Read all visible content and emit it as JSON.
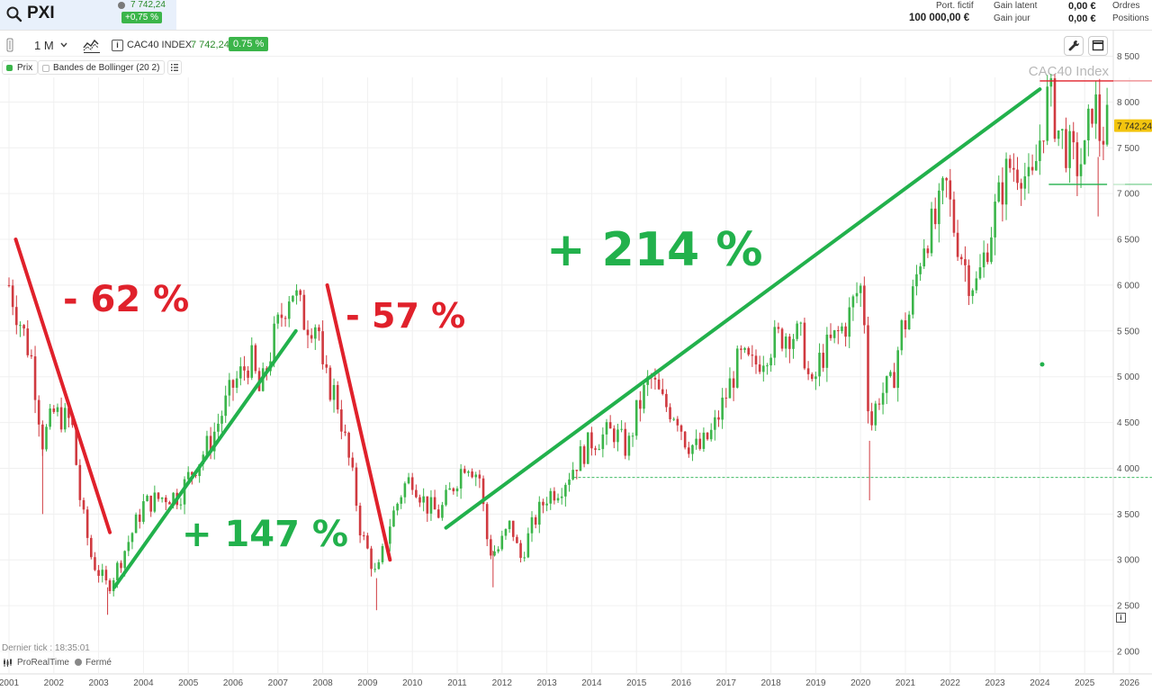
{
  "header": {
    "symbol": "PXI",
    "price": "7 742,24",
    "change": "+0,75 %"
  },
  "account": {
    "portfolio_label": "Port. fictif",
    "portfolio_value": "100 000,00 €",
    "gain_latent_label": "Gain latent",
    "gain_latent_value": "0,00 €",
    "gain_jour_label": "Gain jour",
    "gain_jour_value": "0,00 €",
    "ordres_label": "Ordres",
    "positions_label": "Positions"
  },
  "toolbar": {
    "timeframe": "1 M",
    "instrument_name": "CAC40 INDEX",
    "instrument_price": "7 742,24",
    "instrument_change": "0.75 %"
  },
  "legend": {
    "price_label": "Prix",
    "bollinger_label": "Bandes de Bollinger (20 2)"
  },
  "footer": {
    "last_tick": "Dernier tick : 18:35:01",
    "brand": "ProRealTime",
    "market_status": "Fermé"
  },
  "colors": {
    "up": "#3bb54a",
    "down": "#d03a40",
    "annot_red": "#e0212b",
    "annot_green": "#22b14c",
    "price_tag": "#f2c40f"
  },
  "chart_data": {
    "type": "candlestick",
    "watermark": "CAC40 Index",
    "last_price_label": "7 742,24",
    "ylim": [
      1800,
      8600
    ],
    "xlim": [
      2001.0,
      2026.5
    ],
    "yticks": [
      2000,
      2500,
      3000,
      3500,
      4000,
      4500,
      5000,
      5500,
      6000,
      6500,
      7000,
      7500,
      8000,
      8500
    ],
    "ytick_labels": [
      "2 000",
      "2 500",
      "3 000",
      "3 500",
      "4 000",
      "4 500",
      "5 000",
      "5 500",
      "6 000",
      "6 500",
      "7 000",
      "7 500",
      "8 000",
      "8 500"
    ],
    "xticks": [
      "2001",
      "2002",
      "2003",
      "2004",
      "2005",
      "2006",
      "2007",
      "2008",
      "2009",
      "2010",
      "2011",
      "2012",
      "2013",
      "2014",
      "2015",
      "2016",
      "2017",
      "2018",
      "2019",
      "2020",
      "2021",
      "2022",
      "2023",
      "2024",
      "2025",
      "2026"
    ],
    "series_path": [
      [
        2001.0,
        6000
      ],
      [
        2001.5,
        5200
      ],
      [
        2001.75,
        4300
      ],
      [
        2002.0,
        4600
      ],
      [
        2002.4,
        4500
      ],
      [
        2002.6,
        3600
      ],
      [
        2002.85,
        3000
      ],
      [
        2003.2,
        2700
      ],
      [
        2003.4,
        2900
      ],
      [
        2003.75,
        3300
      ],
      [
        2004.0,
        3600
      ],
      [
        2004.5,
        3700
      ],
      [
        2004.8,
        3700
      ],
      [
        2005.0,
        3900
      ],
      [
        2005.5,
        4300
      ],
      [
        2006.0,
        4900
      ],
      [
        2006.4,
        5200
      ],
      [
        2006.6,
        4800
      ],
      [
        2006.9,
        5400
      ],
      [
        2007.3,
        6000
      ],
      [
        2007.45,
        5800
      ],
      [
        2007.6,
        5600
      ],
      [
        2007.9,
        5600
      ],
      [
        2008.0,
        5000
      ],
      [
        2008.3,
        4800
      ],
      [
        2008.5,
        4300
      ],
      [
        2008.7,
        3800
      ],
      [
        2008.85,
        3300
      ],
      [
        2009.0,
        3100
      ],
      [
        2009.2,
        2800
      ],
      [
        2009.5,
        3400
      ],
      [
        2009.8,
        3800
      ],
      [
        2010.0,
        3900
      ],
      [
        2010.3,
        3600
      ],
      [
        2010.6,
        3500
      ],
      [
        2010.9,
        3800
      ],
      [
        2011.2,
        4100
      ],
      [
        2011.5,
        3900
      ],
      [
        2011.7,
        3100
      ],
      [
        2011.9,
        3100
      ],
      [
        2012.2,
        3400
      ],
      [
        2012.4,
        3000
      ],
      [
        2012.7,
        3400
      ],
      [
        2013.0,
        3700
      ],
      [
        2013.3,
        3800
      ],
      [
        2013.7,
        4100
      ],
      [
        2014.0,
        4300
      ],
      [
        2014.5,
        4400
      ],
      [
        2014.8,
        4200
      ],
      [
        2015.0,
        4600
      ],
      [
        2015.3,
        5000
      ],
      [
        2015.6,
        4700
      ],
      [
        2015.9,
        4600
      ],
      [
        2016.1,
        4300
      ],
      [
        2016.4,
        4200
      ],
      [
        2016.7,
        4400
      ],
      [
        2017.0,
        4800
      ],
      [
        2017.3,
        5200
      ],
      [
        2017.6,
        5100
      ],
      [
        2017.9,
        5300
      ],
      [
        2018.1,
        5400
      ],
      [
        2018.4,
        5500
      ],
      [
        2018.7,
        5400
      ],
      [
        2018.9,
        4800
      ],
      [
        2019.1,
        5200
      ],
      [
        2019.4,
        5400
      ],
      [
        2019.7,
        5600
      ],
      [
        2019.9,
        5900
      ],
      [
        2020.05,
        6000
      ],
      [
        2020.2,
        4400
      ],
      [
        2020.4,
        4800
      ],
      [
        2020.7,
        4900
      ],
      [
        2020.9,
        5500
      ],
      [
        2021.1,
        5700
      ],
      [
        2021.4,
        6500
      ],
      [
        2021.7,
        6700
      ],
      [
        2021.9,
        7100
      ],
      [
        2022.1,
        6600
      ],
      [
        2022.4,
        6100
      ],
      [
        2022.6,
        6000
      ],
      [
        2022.8,
        6400
      ],
      [
        2023.0,
        6800
      ],
      [
        2023.3,
        7300
      ],
      [
        2023.6,
        7300
      ],
      [
        2023.8,
        7000
      ],
      [
        2024.0,
        7600
      ],
      [
        2024.2,
        8100
      ],
      [
        2024.4,
        7700
      ],
      [
        2024.6,
        7500
      ],
      [
        2024.8,
        7300
      ],
      [
        2025.0,
        7400
      ],
      [
        2025.2,
        8100
      ],
      [
        2025.35,
        7600
      ],
      [
        2025.5,
        7742
      ]
    ],
    "annotations": [
      {
        "text": "- 62 %",
        "color": "red"
      },
      {
        "text": "+ 147 %",
        "color": "green"
      },
      {
        "text": "- 57 %",
        "color": "red"
      },
      {
        "text": "+ 214 %",
        "color": "green"
      }
    ],
    "trend_lines": [
      {
        "color": "red",
        "from": [
          2001.15,
          6500
        ],
        "to": [
          2003.25,
          3300
        ]
      },
      {
        "color": "green",
        "from": [
          2003.35,
          2700
        ],
        "to": [
          2007.4,
          5500
        ]
      },
      {
        "color": "red",
        "from": [
          2008.1,
          6000
        ],
        "to": [
          2009.5,
          3000
        ]
      },
      {
        "color": "green",
        "from": [
          2010.75,
          3350
        ],
        "to": [
          2024.0,
          8140
        ]
      }
    ],
    "levels": [
      {
        "value": 8230,
        "color": "red",
        "from": 2024.0,
        "to": 2026.5,
        "style": "solid"
      },
      {
        "value": 7100,
        "color": "green",
        "from": 2024.2,
        "to": 2025.5,
        "style": "solid"
      },
      {
        "value": 7100,
        "color": "green",
        "from": 2025.9,
        "to": 2026.5,
        "style": "solid"
      },
      {
        "value": 3900,
        "color": "green",
        "from": 2013.6,
        "to": 2026.5,
        "style": "dashed"
      }
    ],
    "grid": true
  }
}
